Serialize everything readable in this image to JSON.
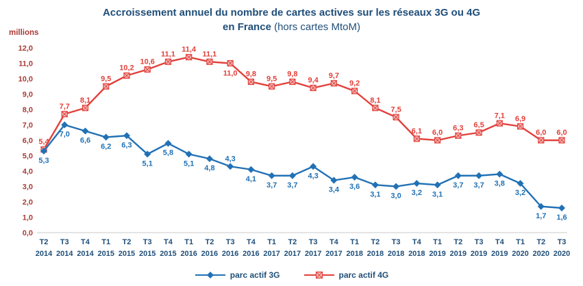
{
  "title": {
    "line1": "Accroissement annuel du nombre de cartes actives sur les réseaux 3G ou 4G",
    "line2_bold": "en France",
    "line2_normal": "(hors cartes MtoM)"
  },
  "axis": {
    "unit_label": "millions"
  },
  "colors": {
    "title": "#1F4E79",
    "y_axis_labels": "#A93A35",
    "x_axis_labels": "#1F4E79",
    "series_3g": "#2171B5",
    "series_4g": "#E2403A",
    "series_4g_fill": "#F2BDBC",
    "axis_line": "#C9C9C9"
  },
  "chart_data": {
    "type": "line",
    "title": "Accroissement annuel du nombre de cartes actives sur les réseaux 3G ou 4G en France (hors cartes MtoM)",
    "unit": "millions",
    "decimal_separator": ",",
    "grid": false,
    "legend_position": "bottom",
    "ylim": [
      0,
      12
    ],
    "ytick_step": 1,
    "x_quarters": [
      "T2",
      "T3",
      "T4",
      "T1",
      "T2",
      "T3",
      "T4",
      "T1",
      "T2",
      "T3",
      "T4",
      "T1",
      "T2",
      "T3",
      "T4",
      "T1",
      "T2",
      "T3",
      "T4",
      "T1",
      "T2",
      "T3",
      "T4",
      "T1",
      "T2",
      "T3"
    ],
    "x_years": [
      "2014",
      "2014",
      "2014",
      "2015",
      "2015",
      "2015",
      "2015",
      "2016",
      "2016",
      "2016",
      "2016",
      "2017",
      "2017",
      "2017",
      "2017",
      "2018",
      "2018",
      "2018",
      "2018",
      "2019",
      "2019",
      "2019",
      "2019",
      "2020",
      "2020",
      "2020"
    ],
    "series": [
      {
        "name": "parc actif 3G",
        "color": "#2171B5",
        "marker": "diamond",
        "values": [
          5.3,
          7.0,
          6.6,
          6.2,
          6.3,
          5.1,
          5.8,
          5.1,
          4.8,
          4.3,
          4.1,
          3.7,
          3.7,
          4.3,
          3.4,
          3.6,
          3.1,
          3.0,
          3.2,
          3.1,
          3.7,
          3.7,
          3.8,
          3.2,
          1.7,
          1.6
        ]
      },
      {
        "name": "parc actif 4G",
        "color": "#E2403A",
        "marker": "square-x",
        "values": [
          5.4,
          7.7,
          8.1,
          9.5,
          10.2,
          10.6,
          11.1,
          11.4,
          11.1,
          11.0,
          9.8,
          9.5,
          9.8,
          9.4,
          9.7,
          9.2,
          8.1,
          7.5,
          6.1,
          6.0,
          6.3,
          6.5,
          7.1,
          6.9,
          6.0,
          6.0
        ]
      }
    ]
  }
}
